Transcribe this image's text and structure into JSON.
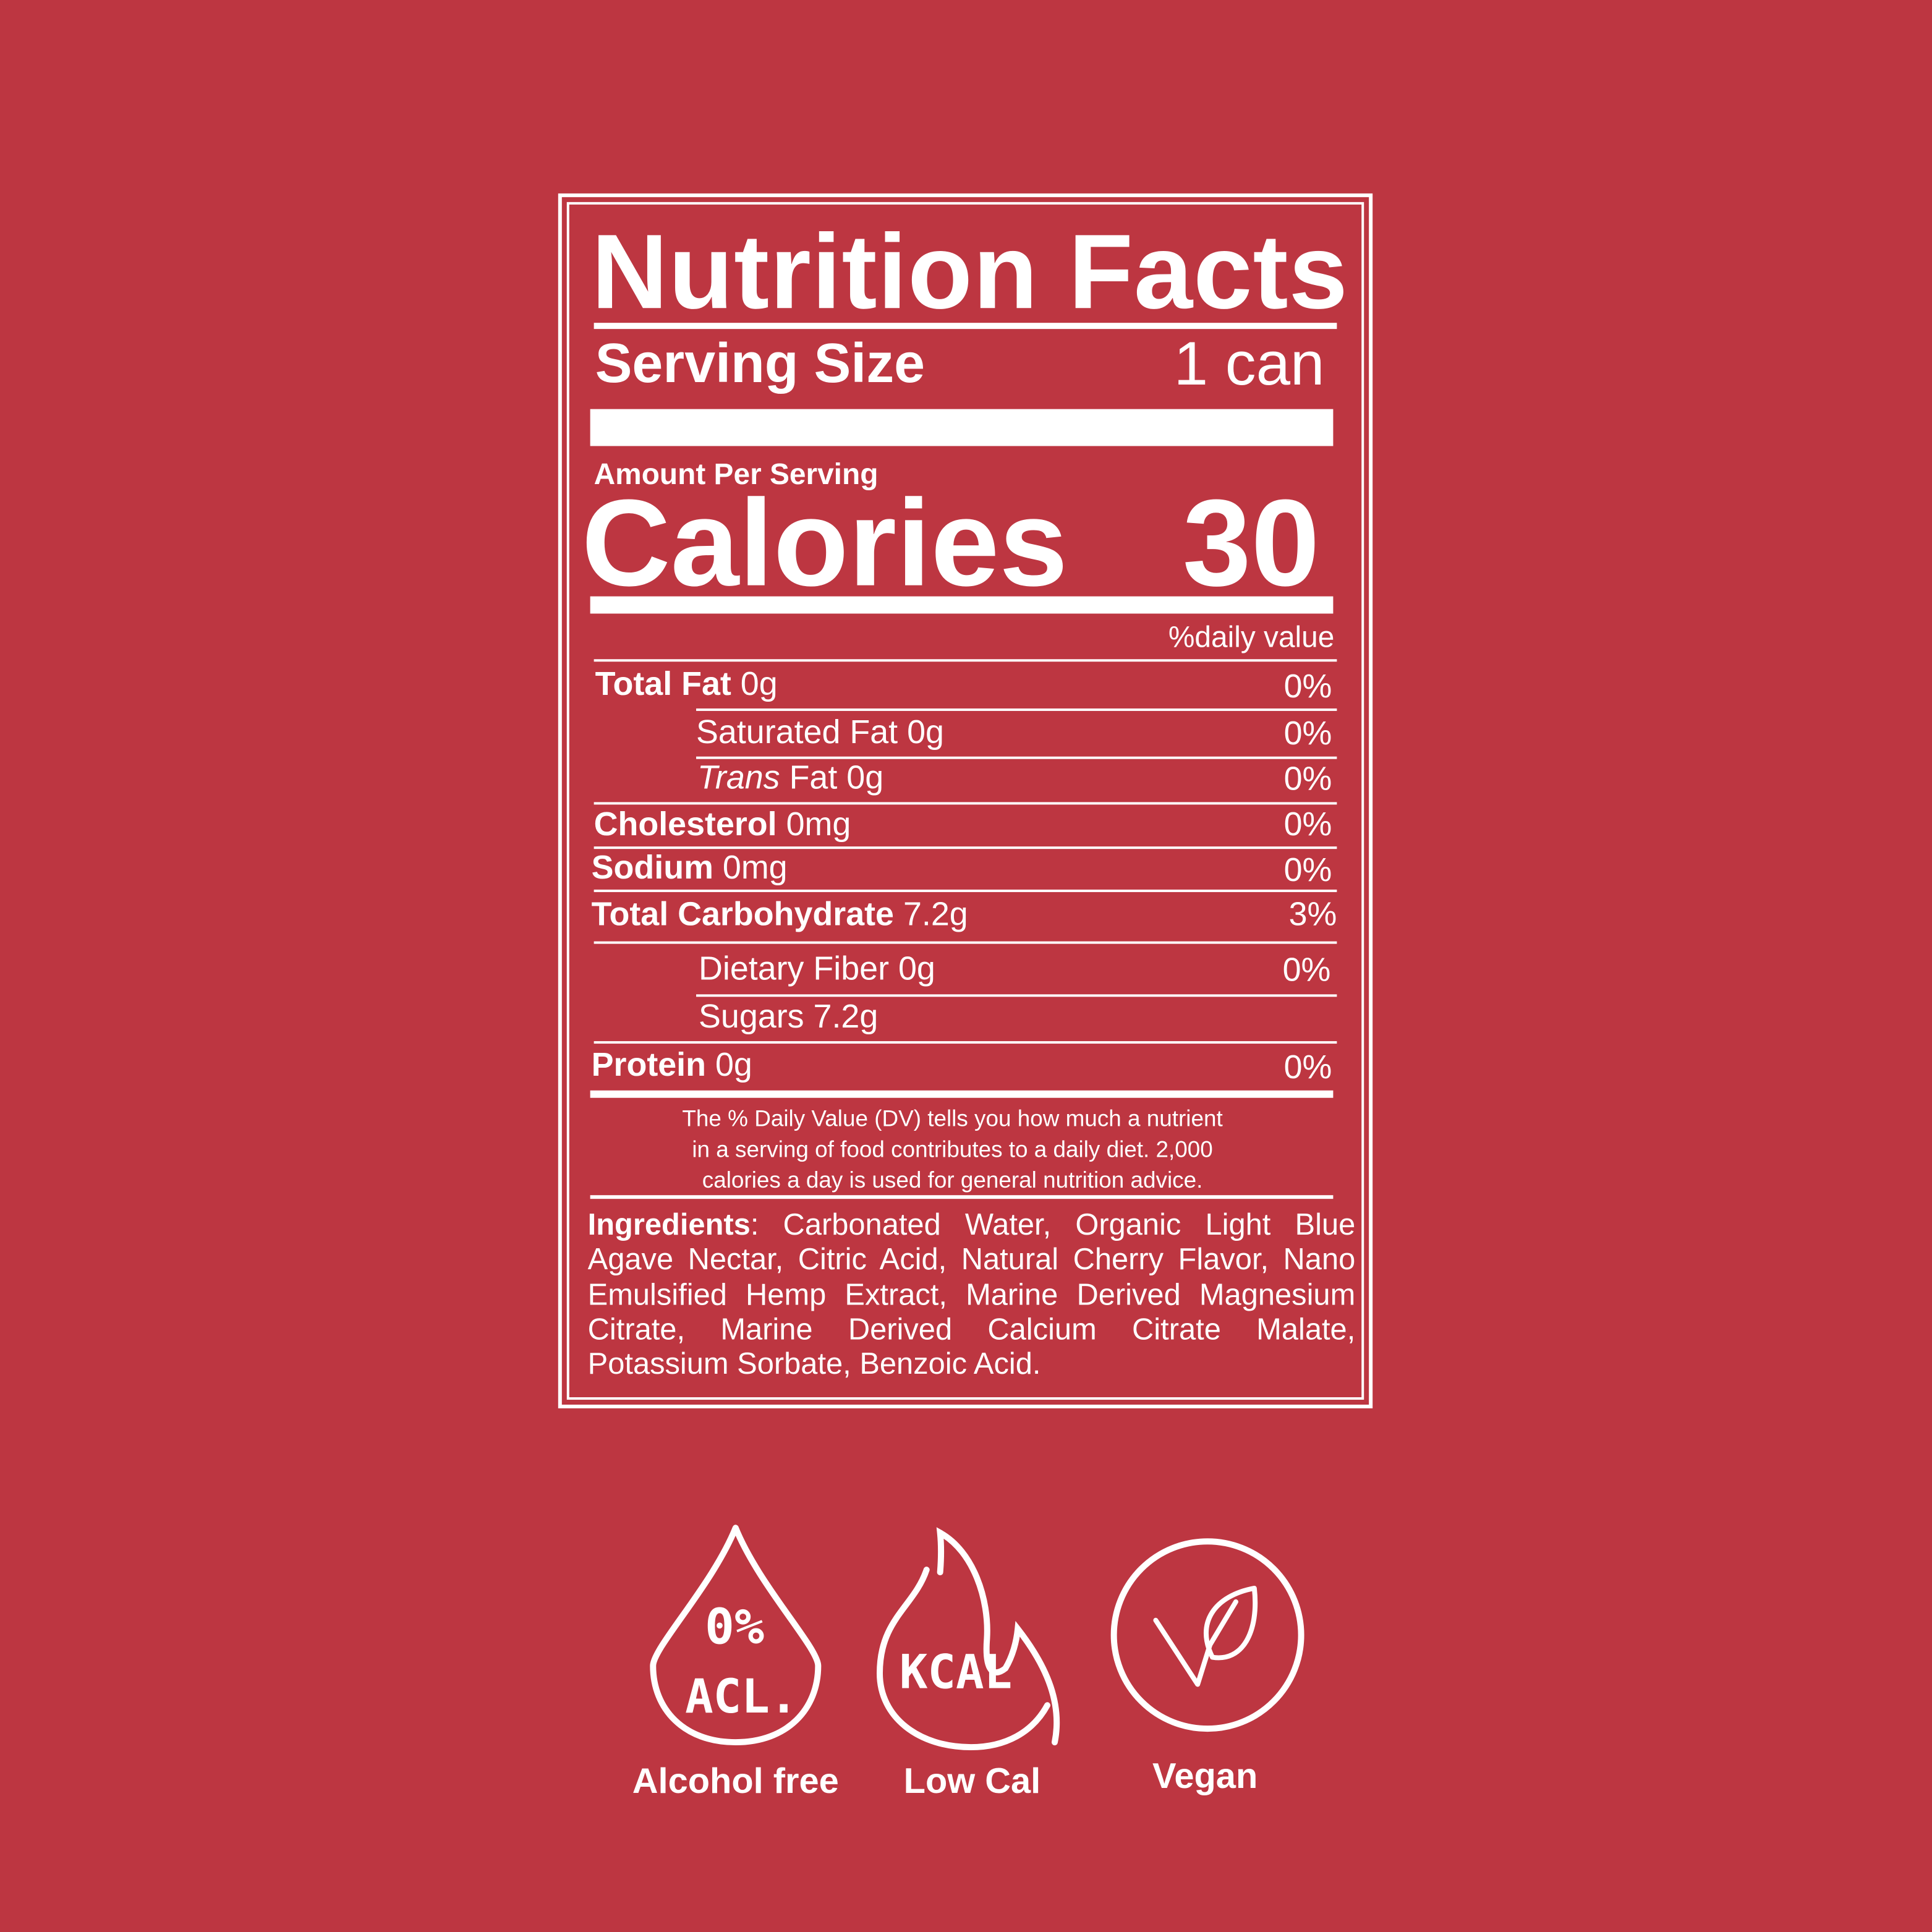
{
  "label": {
    "title": "Nutrition Facts",
    "serving_size_label": "Serving Size",
    "serving_size_value": "1 can",
    "amount_per_serving": "Amount Per Serving",
    "calories_label": "Calories",
    "calories_value": "30",
    "daily_value_header": "%daily value",
    "nutrients": [
      {
        "name": "Total Fat",
        "amount": "0g",
        "dv": "0%"
      },
      {
        "name": "Saturated Fat",
        "amount": "0g",
        "dv": "0%"
      },
      {
        "name": "Trans",
        "name_suffix": "Fat",
        "amount": "0g",
        "dv": "0%"
      },
      {
        "name": "Cholesterol",
        "amount": "0mg",
        "dv": "0%"
      },
      {
        "name": "Sodium",
        "amount": "0mg",
        "dv": "0%"
      },
      {
        "name": "Total Carbohydrate",
        "amount": "7.2g",
        "dv": "3%"
      },
      {
        "name": "Dietary Fiber",
        "amount": "0g",
        "dv": "0%"
      },
      {
        "name": "Sugars",
        "amount": "7.2g",
        "dv": ""
      },
      {
        "name": "Protein",
        "amount": "0g",
        "dv": "0%"
      }
    ],
    "footnote": [
      "The % Daily Value (DV) tells you how much a nutrient",
      "in a serving of food contributes to a daily diet. 2,000",
      "calories a day is used for general nutrition advice."
    ],
    "ingredients_label": "Ingredients",
    "ingredients_text": ": Carbonated Water, Organic Light Blue Agave Nectar, Citric Acid, Natural Cherry Flavor, Nano Emulsified Hemp Extract, Marine Derived Magnesium Citrate, Marine Derived Calcium Citrate Malate, Potassium Sorbate, Benzoic Acid."
  },
  "badges": [
    {
      "icon": "alcohol-free-drop-icon",
      "icon_text_top": "0%",
      "icon_text_bottom": "ACL.",
      "label": "Alcohol free"
    },
    {
      "icon": "flame-kcal-icon",
      "icon_text": "KCAL",
      "label": "Low Cal"
    },
    {
      "icon": "vegan-leaf-icon",
      "label": "Vegan"
    }
  ],
  "colors": {
    "background": "#bd3641",
    "foreground": "#ffffff"
  }
}
